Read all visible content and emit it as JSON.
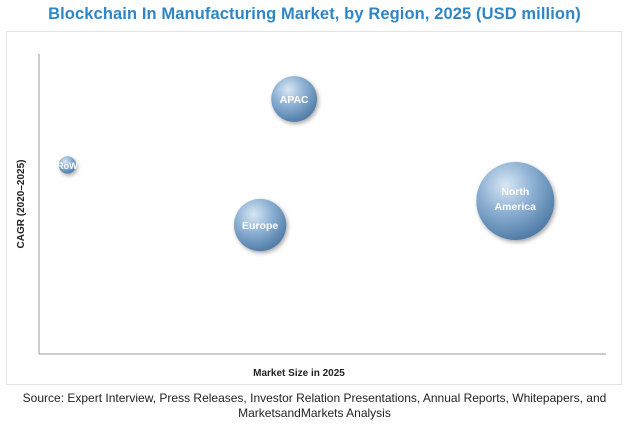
{
  "chart_data": {
    "type": "bubble",
    "title": "Blockchain In Manufacturing Market, by Region, 2025 (USD million)",
    "xlabel": "Market Size in 2025",
    "ylabel": "CAGR (2020–2025)",
    "xlim": [
      0,
      100
    ],
    "ylim": [
      0,
      100
    ],
    "grid": false,
    "legend": "none",
    "colors": {
      "bubble_light": "#c9dcee",
      "bubble_mid": "#7fa6cc",
      "bubble_dark": "#4b7aa8",
      "title": "#2f86c6",
      "axis": "#9a9a9a"
    },
    "points": [
      {
        "label": "APAC",
        "x": 45,
        "y": 85,
        "size": 6.9
      },
      {
        "label": "RoW",
        "x": 5,
        "y": 63,
        "size": 1.0
      },
      {
        "label": "North America",
        "x": 84,
        "y": 51,
        "size": 20.0
      },
      {
        "label": "Europe",
        "x": 39,
        "y": 43,
        "size": 9.0
      }
    ]
  },
  "source_text": "Source: Expert Interview, Press Releases, Investor Relation Presentations, Annual Reports, Whitepapers, and MarketsandMarkets Analysis"
}
